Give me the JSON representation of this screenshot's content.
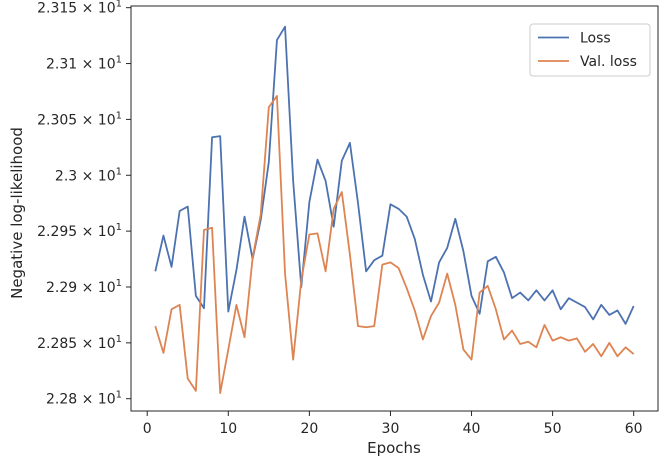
{
  "chart_data": {
    "type": "line",
    "title": "",
    "xlabel": "Epochs",
    "ylabel": "Negative log-likelihood",
    "x": [
      1,
      2,
      3,
      4,
      5,
      6,
      7,
      8,
      9,
      10,
      11,
      12,
      13,
      14,
      15,
      16,
      17,
      18,
      19,
      20,
      21,
      22,
      23,
      24,
      25,
      26,
      27,
      28,
      29,
      30,
      31,
      32,
      33,
      34,
      35,
      36,
      37,
      38,
      39,
      40,
      41,
      42,
      43,
      44,
      45,
      46,
      47,
      48,
      49,
      50,
      51,
      52,
      53,
      54,
      55,
      56,
      57,
      58,
      59,
      60
    ],
    "series": [
      {
        "name": "Loss",
        "color": "#4c72b0",
        "values": [
          22.914,
          22.946,
          22.918,
          22.968,
          22.972,
          22.892,
          22.881,
          23.034,
          23.035,
          22.878,
          22.915,
          22.963,
          22.925,
          22.96,
          23.012,
          23.121,
          23.133,
          22.995,
          22.9,
          22.976,
          23.014,
          22.995,
          22.954,
          23.013,
          23.029,
          22.975,
          22.914,
          22.924,
          22.928,
          22.974,
          22.97,
          22.963,
          22.943,
          22.911,
          22.887,
          22.922,
          22.935,
          22.961,
          22.932,
          22.892,
          22.876,
          22.923,
          22.927,
          22.913,
          22.89,
          22.895,
          22.888,
          22.897,
          22.888,
          22.897,
          22.88,
          22.89,
          22.886,
          22.882,
          22.871,
          22.884,
          22.875,
          22.879,
          22.867,
          22.883
        ]
      },
      {
        "name": "Val. loss",
        "color": "#dd8452",
        "values": [
          22.865,
          22.841,
          22.88,
          22.884,
          22.818,
          22.807,
          22.951,
          22.953,
          22.805,
          22.844,
          22.884,
          22.855,
          22.926,
          22.965,
          23.061,
          23.071,
          22.912,
          22.835,
          22.906,
          22.947,
          22.948,
          22.914,
          22.97,
          22.985,
          22.929,
          22.865,
          22.864,
          22.865,
          22.92,
          22.922,
          22.917,
          22.899,
          22.879,
          22.853,
          22.874,
          22.886,
          22.912,
          22.884,
          22.844,
          22.835,
          22.895,
          22.901,
          22.88,
          22.853,
          22.861,
          22.849,
          22.851,
          22.846,
          22.866,
          22.852,
          22.855,
          22.852,
          22.854,
          22.842,
          22.849,
          22.838,
          22.85,
          22.838,
          22.846,
          22.84
        ]
      }
    ],
    "xlim": [
      -2,
      63
    ],
    "ylim": [
      22.789,
      23.1515
    ],
    "x_ticks": [
      0,
      10,
      20,
      30,
      40,
      50,
      60
    ],
    "x_tick_labels": [
      "0",
      "10",
      "20",
      "30",
      "40",
      "50",
      "60"
    ],
    "y_ticks": [
      22.8,
      22.85,
      22.9,
      22.95,
      23.0,
      23.05,
      23.1,
      23.15
    ],
    "y_tick_mantissas": [
      "2.28",
      "2.285",
      "2.29",
      "2.295",
      "2.3",
      "2.305",
      "2.31",
      "2.315"
    ],
    "y_tick_base": "× 10",
    "y_tick_exponent": "1",
    "grid": false,
    "legend_position": "upper right"
  }
}
